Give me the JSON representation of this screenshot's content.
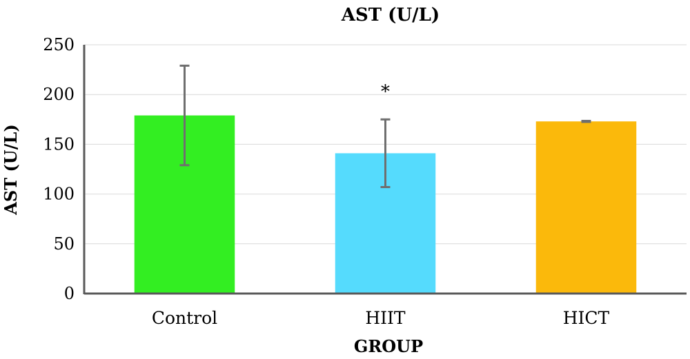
{
  "chart_data": {
    "type": "bar",
    "title": "AST (U/L)",
    "xlabel": "GROUP",
    "ylabel": "AST (U/L)",
    "ylim": [
      0,
      250
    ],
    "yticks": [
      0,
      50,
      100,
      150,
      200,
      250
    ],
    "grid": true,
    "categories": [
      "Control",
      "HIIT",
      "HICT"
    ],
    "values": [
      179,
      141,
      173
    ],
    "error": [
      50,
      34,
      0.5
    ],
    "colors": [
      "#33ee22",
      "#55dbfd",
      "#fbb90b"
    ],
    "annotations": [
      {
        "category": "HIIT",
        "text": "*"
      }
    ]
  }
}
